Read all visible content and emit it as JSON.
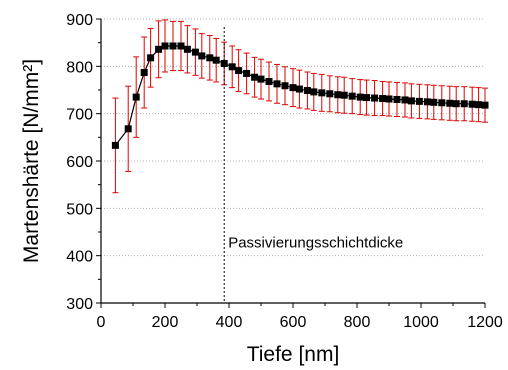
{
  "chart_data": {
    "type": "scatter",
    "title": "",
    "xlabel": "Tiefe [nm]",
    "ylabel": "Martenshärte [N/mm²]",
    "xlim": [
      0,
      1200
    ],
    "ylim": [
      300,
      900
    ],
    "xticks": [
      0,
      200,
      400,
      600,
      800,
      1000,
      1200
    ],
    "yticks": [
      300,
      400,
      500,
      600,
      700,
      800,
      900
    ],
    "grid": "horizontal dotted",
    "legend": "none",
    "colors": {
      "marker": "#000000",
      "errorbar": "#e00000",
      "line": "#000000",
      "vline": "#000000",
      "grid": "#b0b0b0"
    },
    "annotation": {
      "text": "Passivierungsschichtdicke",
      "x": 385
    },
    "series": [
      {
        "x": [
          45,
          85,
          110,
          135,
          155,
          180,
          200,
          225,
          250,
          270,
          295,
          315,
          340,
          360,
          385,
          410,
          430,
          455,
          480,
          500,
          525,
          550,
          575,
          600,
          620,
          645,
          665,
          690,
          715,
          740,
          760,
          785,
          810,
          830,
          855,
          880,
          900,
          925,
          950,
          970,
          995,
          1020,
          1040,
          1065,
          1090,
          1110,
          1135,
          1160,
          1180,
          1200
        ],
        "y": [
          633,
          668,
          735,
          787,
          818,
          836,
          843,
          843,
          843,
          836,
          830,
          822,
          818,
          813,
          806,
          799,
          791,
          785,
          777,
          773,
          768,
          763,
          759,
          755,
          752,
          749,
          746,
          744,
          742,
          740,
          739,
          737,
          735,
          734,
          733,
          732,
          731,
          730,
          729,
          727,
          726,
          725,
          724,
          723,
          722,
          721,
          721,
          720,
          719,
          718
        ],
        "err": [
          100,
          90,
          85,
          75,
          62,
          60,
          55,
          52,
          52,
          50,
          49,
          47,
          47,
          46,
          45,
          44,
          44,
          43,
          42,
          42,
          41,
          41,
          40,
          40,
          40,
          39,
          39,
          39,
          38,
          38,
          38,
          37,
          37,
          37,
          37,
          36,
          36,
          36,
          36,
          36,
          36,
          36,
          36,
          36,
          36,
          36,
          36,
          36,
          36,
          36
        ]
      }
    ]
  }
}
